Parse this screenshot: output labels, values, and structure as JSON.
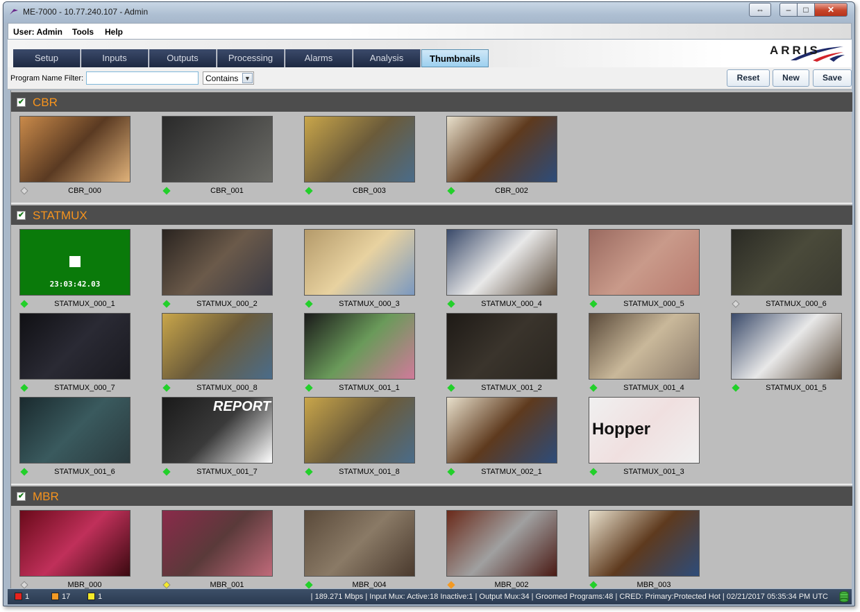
{
  "window": {
    "title": "ME-7000 - 10.77.240.107 - Admin"
  },
  "menu": {
    "user": "User: Admin",
    "tools": "Tools",
    "help": "Help"
  },
  "tabs": [
    {
      "label": "Setup"
    },
    {
      "label": "Inputs"
    },
    {
      "label": "Outputs"
    },
    {
      "label": "Processing"
    },
    {
      "label": "Alarms"
    },
    {
      "label": "Analysis"
    },
    {
      "label": "Thumbnails",
      "active": true
    }
  ],
  "brand": {
    "logo_text": "ARRIS"
  },
  "filter": {
    "label": "Program Name Filter:",
    "value": "",
    "mode": "Contains"
  },
  "buttons": {
    "reset": "Reset",
    "new": "New",
    "save": "Save"
  },
  "groups": [
    {
      "name": "CBR",
      "checked": true,
      "items": [
        {
          "name": "CBR_000",
          "status": "gray",
          "palette": [
            "#c98a4a",
            "#5a3a22",
            "#e0b27a"
          ]
        },
        {
          "name": "CBR_001",
          "status": "green",
          "palette": [
            "#2a2a2a",
            "#4a4a48",
            "#6b6b66"
          ]
        },
        {
          "name": "CBR_003",
          "status": "green",
          "palette": [
            "#c9a64a",
            "#6b5b3a",
            "#4a6c8a"
          ]
        },
        {
          "name": "CBR_002",
          "status": "green",
          "palette": [
            "#e8e0cc",
            "#5e3a1e",
            "#2d4c7a"
          ]
        }
      ]
    },
    {
      "name": "STATMUX",
      "checked": true,
      "items": [
        {
          "name": "STATMUX_000_1",
          "status": "green",
          "palette": [
            "#0a7a0a",
            "#0a7a0a",
            "#0a7a0a"
          ],
          "overlay": "23:03:42.03"
        },
        {
          "name": "STATMUX_000_2",
          "status": "green",
          "palette": [
            "#2a2420",
            "#6b5a4a",
            "#3a3a44"
          ]
        },
        {
          "name": "STATMUX_000_3",
          "status": "green",
          "palette": [
            "#b49a6a",
            "#e8d2a0",
            "#7a98c0"
          ]
        },
        {
          "name": "STATMUX_000_4",
          "status": "green",
          "palette": [
            "#3a4a6a",
            "#e8e8e8",
            "#5a4a3a"
          ]
        },
        {
          "name": "STATMUX_000_5",
          "status": "green",
          "palette": [
            "#9a6a60",
            "#c99a8a",
            "#b87a6e"
          ]
        },
        {
          "name": "STATMUX_000_6",
          "status": "gray",
          "palette": [
            "#2a2a24",
            "#4a4a3a",
            "#3a3a30"
          ]
        },
        {
          "name": "STATMUX_000_7",
          "status": "green",
          "palette": [
            "#101014",
            "#2a2a34",
            "#1a1a20"
          ]
        },
        {
          "name": "STATMUX_000_8",
          "status": "green",
          "palette": [
            "#c9a64a",
            "#6b5b3a",
            "#4a6c8a"
          ]
        },
        {
          "name": "STATMUX_001_1",
          "status": "green",
          "palette": [
            "#1a1a1a",
            "#6a9a5a",
            "#d07a9a"
          ]
        },
        {
          "name": "STATMUX_001_2",
          "status": "green",
          "palette": [
            "#1e1a16",
            "#3a342c",
            "#2a2620"
          ]
        },
        {
          "name": "STATMUX_001_4",
          "status": "green",
          "palette": [
            "#5a4a3a",
            "#c9b89a",
            "#8a7a6a"
          ]
        },
        {
          "name": "STATMUX_001_5",
          "status": "green",
          "palette": [
            "#3a4a6a",
            "#e8e8e8",
            "#5a4a3a"
          ]
        },
        {
          "name": "STATMUX_001_6",
          "status": "green",
          "palette": [
            "#1a2a2e",
            "#3a5a5e",
            "#2a3a3e"
          ]
        },
        {
          "name": "STATMUX_001_7",
          "status": "green",
          "palette": [
            "#1a1a1a",
            "#3a3a3a",
            "#ffffff"
          ],
          "overlay": "REPORT"
        },
        {
          "name": "STATMUX_001_8",
          "status": "green",
          "palette": [
            "#c9a64a",
            "#6b5b3a",
            "#4a6c8a"
          ]
        },
        {
          "name": "STATMUX_002_1",
          "status": "green",
          "palette": [
            "#e8e0cc",
            "#5e3a1e",
            "#2d4c7a"
          ]
        },
        {
          "name": "STATMUX_001_3",
          "status": "green",
          "palette": [
            "#f0f0f0",
            "#f0e0e0",
            "#f0f0f0"
          ],
          "overlay": "Hopper"
        }
      ]
    },
    {
      "name": "MBR",
      "checked": true,
      "items": [
        {
          "name": "MBR_000",
          "status": "gray",
          "palette": [
            "#6a0a1a",
            "#c0305a",
            "#3a0a10"
          ]
        },
        {
          "name": "MBR_001",
          "status": "yellow",
          "palette": [
            "#8a2a4a",
            "#5a3a3a",
            "#c06a7a"
          ]
        },
        {
          "name": "MBR_004",
          "status": "green",
          "palette": [
            "#5a4a3a",
            "#8a7a66",
            "#4a3a2e"
          ]
        },
        {
          "name": "MBR_002",
          "status": "orange",
          "palette": [
            "#6a2a1a",
            "#a0a0a0",
            "#4a1a14"
          ]
        },
        {
          "name": "MBR_003",
          "status": "green",
          "palette": [
            "#e8e0cc",
            "#5e3a1e",
            "#2d4c7a"
          ]
        }
      ]
    }
  ],
  "status": {
    "red_count": "1",
    "orange_count": "17",
    "yellow_count": "1",
    "summary": "| 189.271 Mbps | Input Mux: Active:18 Inactive:1 | Output Mux:34 | Groomed Programs:48 | CRED: Primary:Protected Hot | 02/21/2017 05:35:34 PM UTC",
    "colors": {
      "red": "#e8231e",
      "orange": "#f39a24",
      "yellow": "#f5ea2a"
    }
  }
}
